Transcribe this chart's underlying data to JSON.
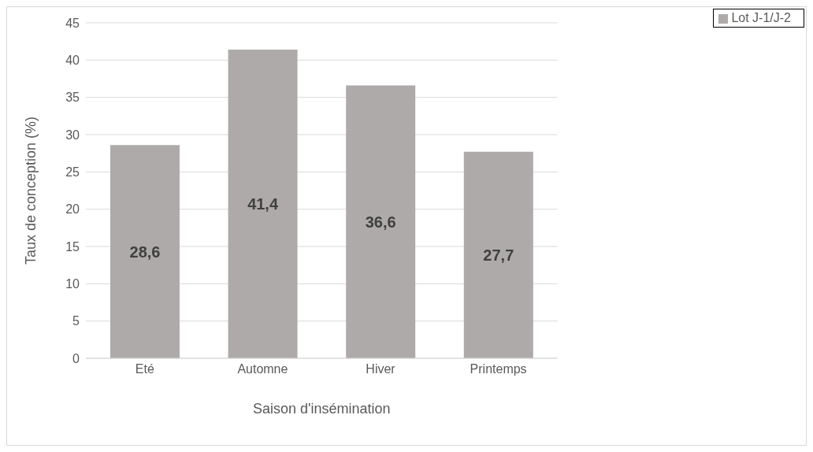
{
  "chart_data": {
    "type": "bar",
    "xlabel": "Saison d'insémination",
    "ylabel": "Taux de conception (%)",
    "categories": [
      "Eté",
      "Automne",
      "Hiver",
      "Printemps"
    ],
    "series": [
      {
        "name": "Lot J-1/J-2",
        "color": "#aeaaaa",
        "values": [
          28.6,
          41.4,
          36.6,
          27.7
        ]
      }
    ],
    "value_labels": [
      "28,6",
      "41,4",
      "36,6",
      "27,7"
    ],
    "ylim": [
      0,
      45
    ],
    "yticks": [
      0,
      5,
      10,
      15,
      20,
      25,
      30,
      35,
      40,
      45
    ],
    "grid": "y",
    "legend": "top right"
  }
}
